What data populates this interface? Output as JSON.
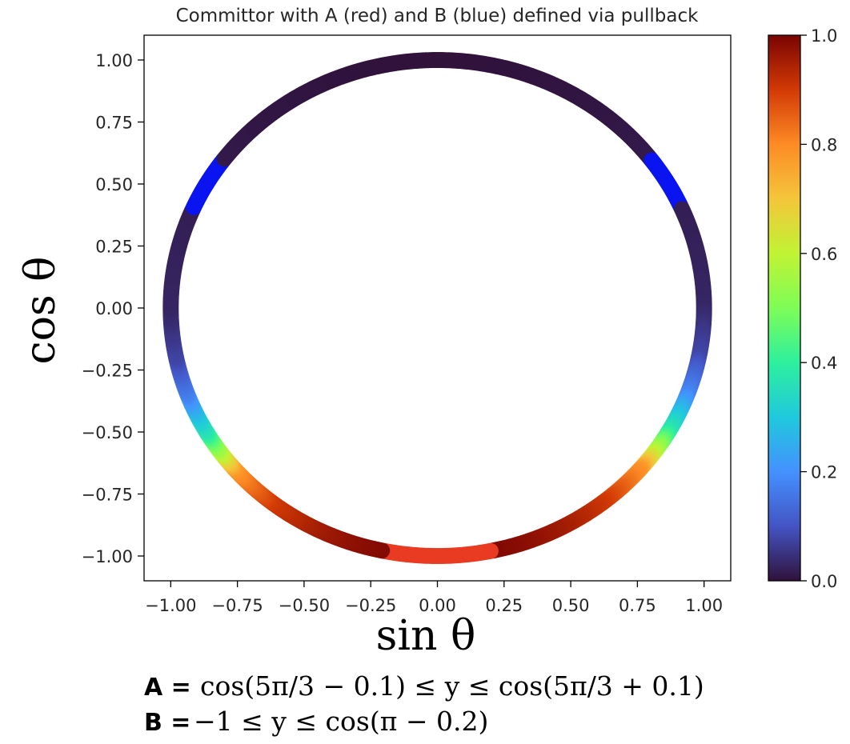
{
  "chart_data": {
    "type": "scatter",
    "title": "Committor with A (red) and B (blue) defined via pullback",
    "xlabel": "sin θ",
    "ylabel": "cos θ",
    "xlim": [
      -1.1,
      1.1
    ],
    "ylim": [
      -1.1,
      1.1
    ],
    "xticks": [
      -1.0,
      -0.75,
      -0.5,
      -0.25,
      0.0,
      0.25,
      0.5,
      0.75,
      1.0
    ],
    "yticks": [
      -1.0,
      -0.75,
      -0.5,
      -0.25,
      0.0,
      0.25,
      0.5,
      0.75,
      1.0
    ],
    "xtick_labels": [
      "−1.00",
      "−0.75",
      "−0.50",
      "−0.25",
      "0.00",
      "0.25",
      "0.50",
      "0.75",
      "1.00"
    ],
    "ytick_labels": [
      "−1.00",
      "−0.75",
      "−0.50",
      "−0.25",
      "0.00",
      "0.25",
      "0.50",
      "0.75",
      "1.00"
    ],
    "grid": false,
    "colormap": "turbo",
    "colorbar": {
      "range": [
        0.0,
        1.0
      ],
      "ticks": [
        0.0,
        0.2,
        0.4,
        0.6,
        0.8,
        1.0
      ],
      "tick_labels": [
        "0.0",
        "0.2",
        "0.4",
        "0.6",
        "0.8",
        "1.0"
      ]
    },
    "series": [
      {
        "description_x": "sin θ",
        "description_y": "cos θ",
        "committor_profile": [
          {
            "cos_theta": 1.0,
            "value": 0.0
          },
          {
            "cos_theta": 0.0,
            "value": 0.03
          },
          {
            "cos_theta": -0.2,
            "value": 0.08
          },
          {
            "cos_theta": -0.35,
            "value": 0.18
          },
          {
            "cos_theta": -0.5,
            "value": 0.38
          },
          {
            "cos_theta": -0.58,
            "value": 0.58
          },
          {
            "cos_theta": -0.65,
            "value": 0.78
          },
          {
            "cos_theta": -0.78,
            "value": 0.9
          },
          {
            "cos_theta": -0.9,
            "value": 0.96
          },
          {
            "cos_theta": -1.0,
            "value": 1.0
          }
        ]
      }
    ],
    "set_A": {
      "color": "#e93a22",
      "sin_theta_range": [
        -0.2,
        0.2
      ],
      "label": "red"
    },
    "set_B": {
      "color": "#0a14f0",
      "cos_theta_range": [
        0.4,
        0.6
      ],
      "label": "blue"
    }
  },
  "notes": {
    "a_key": "A =",
    "a_expr": "cos(5π/3 − 0.1) ≤ y ≤ cos(5π/3 + 0.1)",
    "b_key": "B =",
    "b_expr": "−1 ≤ y ≤ cos(π − 0.2)"
  }
}
